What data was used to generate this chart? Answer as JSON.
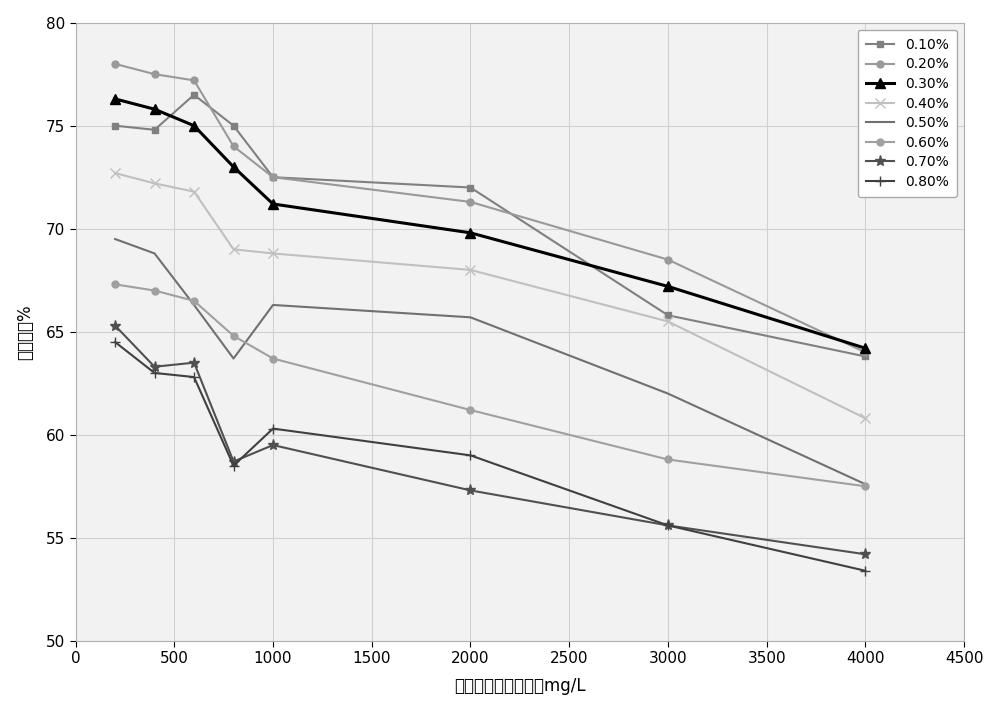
{
  "x": [
    200,
    400,
    600,
    800,
    1000,
    2000,
    3000,
    4000
  ],
  "series": [
    {
      "label": "0.10%",
      "y": [
        75.0,
        74.8,
        76.5,
        75.0,
        72.5,
        72.0,
        65.8,
        63.8
      ],
      "color": "#808080",
      "marker": "s",
      "linewidth": 1.5,
      "markersize": 5,
      "zorder": 3,
      "bold": false
    },
    {
      "label": "0.20%",
      "y": [
        78.0,
        77.5,
        77.2,
        74.0,
        72.5,
        71.3,
        68.5,
        64.0
      ],
      "color": "#999999",
      "marker": "o",
      "linewidth": 1.5,
      "markersize": 5,
      "zorder": 3,
      "bold": false
    },
    {
      "label": "0.30%",
      "y": [
        76.3,
        75.8,
        75.0,
        73.0,
        71.2,
        69.8,
        67.2,
        64.2
      ],
      "color": "#000000",
      "marker": "^",
      "linewidth": 2.2,
      "markersize": 7,
      "zorder": 5,
      "bold": true
    },
    {
      "label": "0.40%",
      "y": [
        72.7,
        72.2,
        71.8,
        69.0,
        68.8,
        68.0,
        65.5,
        60.8
      ],
      "color": "#c0c0c0",
      "marker": "x",
      "linewidth": 1.5,
      "markersize": 7,
      "zorder": 3,
      "bold": false
    },
    {
      "label": "0.50%",
      "y": [
        69.5,
        68.8,
        66.3,
        63.7,
        66.3,
        65.7,
        62.0,
        57.6
      ],
      "color": "#707070",
      "marker": "None",
      "linewidth": 1.5,
      "markersize": 5,
      "zorder": 3,
      "bold": false
    },
    {
      "label": "0.60%",
      "y": [
        67.3,
        67.0,
        66.5,
        64.8,
        63.7,
        61.2,
        58.8,
        57.5
      ],
      "color": "#a0a0a0",
      "marker": "o",
      "linewidth": 1.5,
      "markersize": 5,
      "zorder": 3,
      "bold": false
    },
    {
      "label": "0.70%",
      "y": [
        65.3,
        63.3,
        63.5,
        58.7,
        59.5,
        57.3,
        55.6,
        54.2
      ],
      "color": "#505050",
      "marker": "*",
      "linewidth": 1.5,
      "markersize": 8,
      "zorder": 3,
      "bold": false
    },
    {
      "label": "0.80%",
      "y": [
        64.5,
        63.0,
        62.8,
        58.5,
        60.3,
        59.0,
        55.6,
        53.4
      ],
      "color": "#404040",
      "marker": "+",
      "linewidth": 1.5,
      "markersize": 7,
      "zorder": 3,
      "bold": false
    }
  ],
  "xlabel": "二价金属离子浓度，mg/L",
  "ylabel": "减阱率，%",
  "xlim": [
    0,
    4500
  ],
  "ylim": [
    50,
    80
  ],
  "xticks": [
    0,
    500,
    1000,
    1500,
    2000,
    2500,
    3000,
    3500,
    4000,
    4500
  ],
  "yticks": [
    50,
    55,
    60,
    65,
    70,
    75,
    80
  ],
  "legend_fontsize": 10,
  "axis_fontsize": 12,
  "tick_fontsize": 11,
  "bg_color": "#f2f2f2",
  "outer_bg": "#ffffff",
  "grid_color": "#d0d0d0"
}
